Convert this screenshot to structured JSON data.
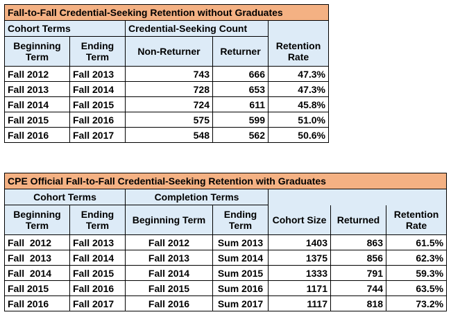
{
  "table1": {
    "title": "Fall-to-Fall Credential-Seeking Retention without Graduates",
    "group_cohort": "Cohort Terms",
    "group_count": "Credential-Seeking Count",
    "col_beginning": "Beginning Term",
    "col_ending": "Ending Term",
    "col_nonreturner": "Non-Returner",
    "col_returner": "Returner",
    "col_rate": "Retention Rate",
    "rows": [
      {
        "begin": "Fall 2012",
        "end": "Fall 2013",
        "non": "743",
        "ret": "666",
        "rate": "47.3%"
      },
      {
        "begin": "Fall 2013",
        "end": "Fall 2014",
        "non": "728",
        "ret": "653",
        "rate": "47.3%"
      },
      {
        "begin": "Fall 2014",
        "end": "Fall 2015",
        "non": "724",
        "ret": "611",
        "rate": "45.8%"
      },
      {
        "begin": "Fall 2015",
        "end": "Fall 2016",
        "non": "575",
        "ret": "599",
        "rate": "51.0%"
      },
      {
        "begin": "Fall 2016",
        "end": "Fall 2017",
        "non": "548",
        "ret": "562",
        "rate": "50.6%"
      }
    ]
  },
  "table2": {
    "title": "CPE Official Fall-to-Fall Credential-Seeking Retention with Graduates",
    "group_cohort": "Cohort Terms",
    "group_completion": "Completion Terms",
    "col_beginning": "Beginning Term",
    "col_ending": "Ending Term",
    "col_comp_beginning": "Beginning Term",
    "col_comp_ending": "Ending Term",
    "col_cohort_size": "Cohort Size",
    "col_returned": "Returned",
    "col_rate": "Retention Rate",
    "rows": [
      {
        "begin": "Fall  2012",
        "end": "Fall 2013",
        "cbegin": "Fall 2012",
        "cend": "Sum 2013",
        "size": "1403",
        "ret": "863",
        "rate": "61.5%"
      },
      {
        "begin": "Fall  2013",
        "end": "Fall 2014",
        "cbegin": "Fall 2013",
        "cend": "Sum 2014",
        "size": "1375",
        "ret": "856",
        "rate": "62.3%"
      },
      {
        "begin": "Fall  2014",
        "end": "Fall 2015",
        "cbegin": "Fall 2014",
        "cend": "Sum 2015",
        "size": "1333",
        "ret": "791",
        "rate": "59.3%"
      },
      {
        "begin": "Fall 2015",
        "end": "Fall 2016",
        "cbegin": "Fall 2015",
        "cend": "Sum 2016",
        "size": "1171",
        "ret": "744",
        "rate": "63.5%"
      },
      {
        "begin": "Fall 2016",
        "end": "Fall 2017",
        "cbegin": "Fall 2016",
        "cend": "Sum 2017",
        "size": "1117",
        "ret": "818",
        "rate": "73.2%"
      }
    ]
  }
}
